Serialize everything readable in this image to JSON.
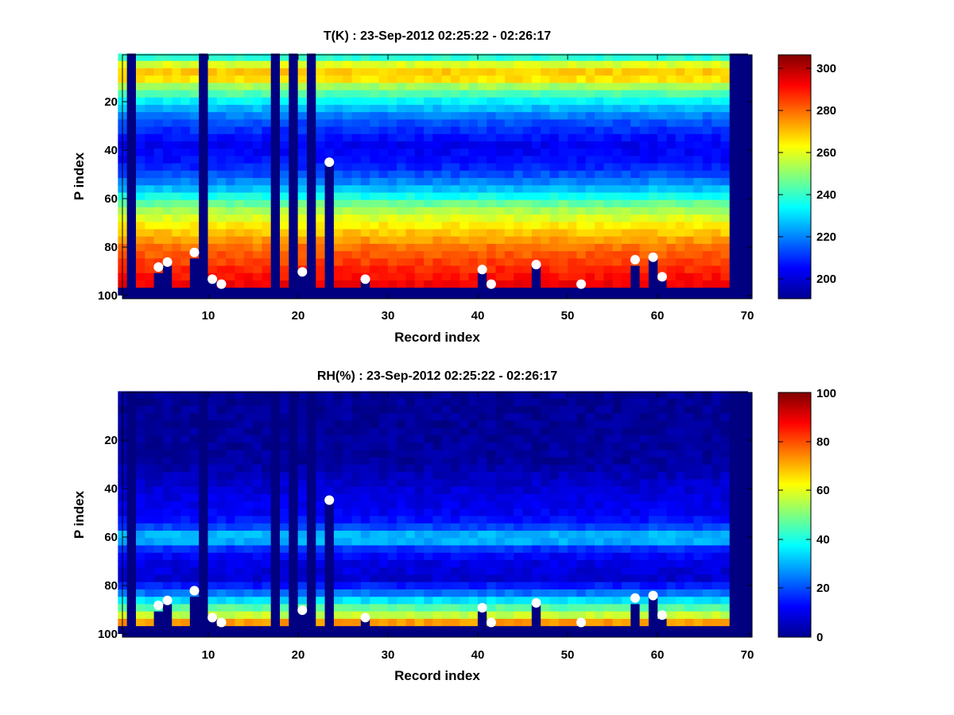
{
  "figure": {
    "panels": [
      {
        "title": "T(K) : 23-Sep-2012 02:25:22 - 02:26:17",
        "xlabel": "Record index",
        "ylabel": "P index",
        "xticks": [
          "10",
          "20",
          "30",
          "40",
          "50",
          "60",
          "70"
        ],
        "yticks": [
          "20",
          "40",
          "60",
          "80",
          "100"
        ],
        "colorbar_ticks": [
          "200",
          "220",
          "240",
          "260",
          "280",
          "300"
        ]
      },
      {
        "title": "RH(%) : 23-Sep-2012 02:25:22 - 02:26:17",
        "xlabel": "Record index",
        "ylabel": "P index",
        "xticks": [
          "10",
          "20",
          "30",
          "40",
          "50",
          "60",
          "70"
        ],
        "yticks": [
          "20",
          "40",
          "60",
          "80",
          "100"
        ],
        "colorbar_ticks": [
          "0",
          "20",
          "40",
          "60",
          "80",
          "100"
        ]
      }
    ]
  },
  "chart_data": [
    {
      "type": "heatmap",
      "title": "T(K) : 23-Sep-2012 02:25:22 - 02:26:17",
      "xlabel": "Record index",
      "ylabel": "P index",
      "xlim": [
        1,
        71
      ],
      "ylim": [
        101,
        1
      ],
      "colormap": "jet",
      "clim": [
        190,
        306
      ],
      "colorbar_ticks": [
        200,
        220,
        240,
        260,
        280,
        300
      ],
      "grid": false,
      "profile_by_p_index": [
        {
          "p": 1,
          "value": 228
        },
        {
          "p": 6,
          "value": 262
        },
        {
          "p": 10,
          "value": 272
        },
        {
          "p": 14,
          "value": 254
        },
        {
          "p": 20,
          "value": 234
        },
        {
          "p": 28,
          "value": 215
        },
        {
          "p": 38,
          "value": 203
        },
        {
          "p": 46,
          "value": 206
        },
        {
          "p": 52,
          "value": 216
        },
        {
          "p": 58,
          "value": 230
        },
        {
          "p": 64,
          "value": 250
        },
        {
          "p": 72,
          "value": 265
        },
        {
          "p": 80,
          "value": 278
        },
        {
          "p": 88,
          "value": 286
        },
        {
          "p": 95,
          "value": 292
        },
        {
          "p": 98,
          "value": 294
        }
      ],
      "missing_columns": [
        {
          "record": 2,
          "p_start": 1
        },
        {
          "record": 10,
          "p_start": 1
        },
        {
          "record": 18,
          "p_start": 1
        },
        {
          "record": 20,
          "p_start": 1
        },
        {
          "record": 22,
          "p_start": 1
        },
        {
          "record": 69,
          "p_start": 1
        },
        {
          "record": 70,
          "p_start": 1
        },
        {
          "record": 24,
          "p_start": 51
        }
      ],
      "markers": [
        {
          "x": 5,
          "y": 88
        },
        {
          "x": 6,
          "y": 86
        },
        {
          "x": 9,
          "y": 82
        },
        {
          "x": 11,
          "y": 93
        },
        {
          "x": 12,
          "y": 95
        },
        {
          "x": 21,
          "y": 90
        },
        {
          "x": 24,
          "y": 45
        },
        {
          "x": 28,
          "y": 93
        },
        {
          "x": 41,
          "y": 89
        },
        {
          "x": 42,
          "y": 95
        },
        {
          "x": 47,
          "y": 87
        },
        {
          "x": 52,
          "y": 95
        },
        {
          "x": 58,
          "y": 85
        },
        {
          "x": 60,
          "y": 84
        },
        {
          "x": 61,
          "y": 92
        }
      ]
    },
    {
      "type": "heatmap",
      "title": "RH(%) : 23-Sep-2012 02:25:22 - 02:26:17",
      "xlabel": "Record index",
      "ylabel": "P index",
      "xlim": [
        1,
        71
      ],
      "ylim": [
        101,
        1
      ],
      "colormap": "jet",
      "clim": [
        0,
        100
      ],
      "colorbar_ticks": [
        0,
        20,
        40,
        60,
        80,
        100
      ],
      "grid": false,
      "profile_by_p_index": [
        {
          "p": 1,
          "value": 2
        },
        {
          "p": 30,
          "value": 3
        },
        {
          "p": 40,
          "value": 8
        },
        {
          "p": 52,
          "value": 12
        },
        {
          "p": 57,
          "value": 20
        },
        {
          "p": 61,
          "value": 36
        },
        {
          "p": 65,
          "value": 18
        },
        {
          "p": 70,
          "value": 10
        },
        {
          "p": 78,
          "value": 8
        },
        {
          "p": 84,
          "value": 25
        },
        {
          "p": 90,
          "value": 48
        },
        {
          "p": 94,
          "value": 62
        },
        {
          "p": 97,
          "value": 82
        },
        {
          "p": 98,
          "value": 84
        }
      ],
      "missing_columns": [
        {
          "record": 2,
          "p_start": 1
        },
        {
          "record": 10,
          "p_start": 1
        },
        {
          "record": 18,
          "p_start": 1
        },
        {
          "record": 20,
          "p_start": 1
        },
        {
          "record": 22,
          "p_start": 1
        },
        {
          "record": 69,
          "p_start": 1
        },
        {
          "record": 70,
          "p_start": 1
        },
        {
          "record": 24,
          "p_start": 51
        }
      ],
      "markers": [
        {
          "x": 5,
          "y": 88
        },
        {
          "x": 6,
          "y": 86
        },
        {
          "x": 9,
          "y": 82
        },
        {
          "x": 11,
          "y": 93
        },
        {
          "x": 12,
          "y": 95
        },
        {
          "x": 21,
          "y": 90
        },
        {
          "x": 24,
          "y": 45
        },
        {
          "x": 28,
          "y": 93
        },
        {
          "x": 41,
          "y": 89
        },
        {
          "x": 42,
          "y": 95
        },
        {
          "x": 47,
          "y": 87
        },
        {
          "x": 52,
          "y": 95
        },
        {
          "x": 58,
          "y": 85
        },
        {
          "x": 60,
          "y": 84
        },
        {
          "x": 61,
          "y": 92
        }
      ]
    }
  ]
}
